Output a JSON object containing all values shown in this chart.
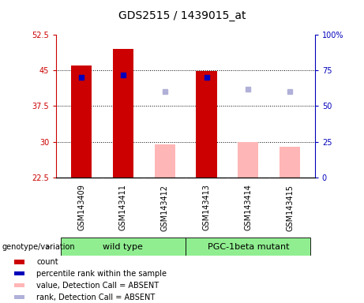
{
  "title": "GDS2515 / 1439015_at",
  "samples": [
    "GSM143409",
    "GSM143411",
    "GSM143412",
    "GSM143413",
    "GSM143414",
    "GSM143415"
  ],
  "ylim_left": [
    22.5,
    52.5
  ],
  "ylim_right": [
    0,
    100
  ],
  "yticks_left": [
    22.5,
    30,
    37.5,
    45,
    52.5
  ],
  "yticks_right": [
    0,
    25,
    50,
    75,
    100
  ],
  "ytick_labels_left": [
    "22.5",
    "30",
    "37.5",
    "45",
    "52.5"
  ],
  "ytick_labels_right": [
    "0",
    "25",
    "50",
    "75",
    "100%"
  ],
  "bar_width": 0.5,
  "count_indices": [
    0,
    1,
    3
  ],
  "count_values": [
    46.0,
    49.5,
    44.8
  ],
  "count_color": "#cc0000",
  "absent_bar_indices": [
    2,
    4,
    5
  ],
  "absent_bar_values": [
    29.5,
    30.0,
    29.0
  ],
  "absent_bar_color": "#ffb6b6",
  "rank_indices": [
    0,
    1,
    3
  ],
  "rank_values": [
    43.5,
    44.0,
    43.5
  ],
  "rank_color": "#0000bb",
  "rank_absent_indices": [
    2,
    4,
    5
  ],
  "rank_absent_values": [
    40.5,
    41.0,
    40.5
  ],
  "rank_absent_color": "#b0b0d8",
  "bar_bottom": 22.5,
  "left_axis_color": "#cc0000",
  "right_axis_color": "#0000bb",
  "background_labels": "#c8c8c8",
  "background_group": "#90ee90",
  "hgrid_vals": [
    30,
    37.5,
    45
  ],
  "wt_label": "wild type",
  "pgc_label": "PGC-1beta mutant",
  "genotype_label": "genotype/variation",
  "legend_items": [
    {
      "label": "count",
      "color": "#cc0000"
    },
    {
      "label": "percentile rank within the sample",
      "color": "#0000bb"
    },
    {
      "label": "value, Detection Call = ABSENT",
      "color": "#ffb6b6"
    },
    {
      "label": "rank, Detection Call = ABSENT",
      "color": "#b0b0d8"
    }
  ],
  "title_fontsize": 10,
  "tick_fontsize": 7,
  "label_fontsize": 7,
  "legend_fontsize": 7,
  "group_fontsize": 8,
  "genotype_fontsize": 7
}
